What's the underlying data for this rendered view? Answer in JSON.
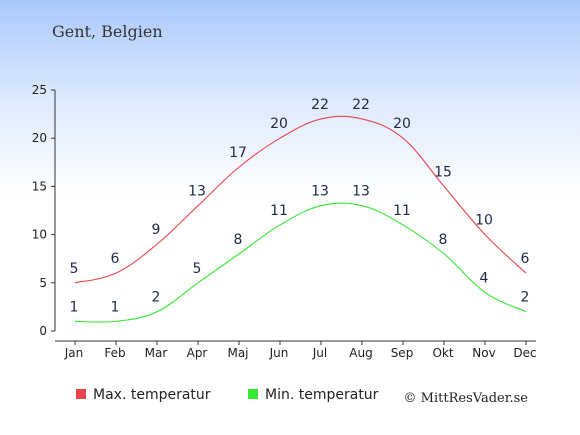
{
  "chart_data": {
    "type": "line",
    "title": "Gent, Belgien",
    "categories": [
      "Jan",
      "Feb",
      "Mar",
      "Apr",
      "Maj",
      "Jun",
      "Jul",
      "Aug",
      "Sep",
      "Okt",
      "Nov",
      "Dec"
    ],
    "series": [
      {
        "name": "Max. temperatur",
        "color": "#e8454a",
        "values": [
          5,
          6,
          9,
          13,
          17,
          20,
          22,
          22,
          20,
          15,
          10,
          6
        ]
      },
      {
        "name": "Min. temperatur",
        "color": "#33e833",
        "values": [
          1,
          1,
          2,
          5,
          8,
          11,
          13,
          13,
          11,
          8,
          4,
          2
        ]
      }
    ],
    "ylim": [
      0,
      25
    ],
    "yticks": [
      0,
      5,
      10,
      15,
      20,
      25
    ],
    "grid": false,
    "legend_position": "bottom-left",
    "credit": "© MittResVader.se"
  }
}
